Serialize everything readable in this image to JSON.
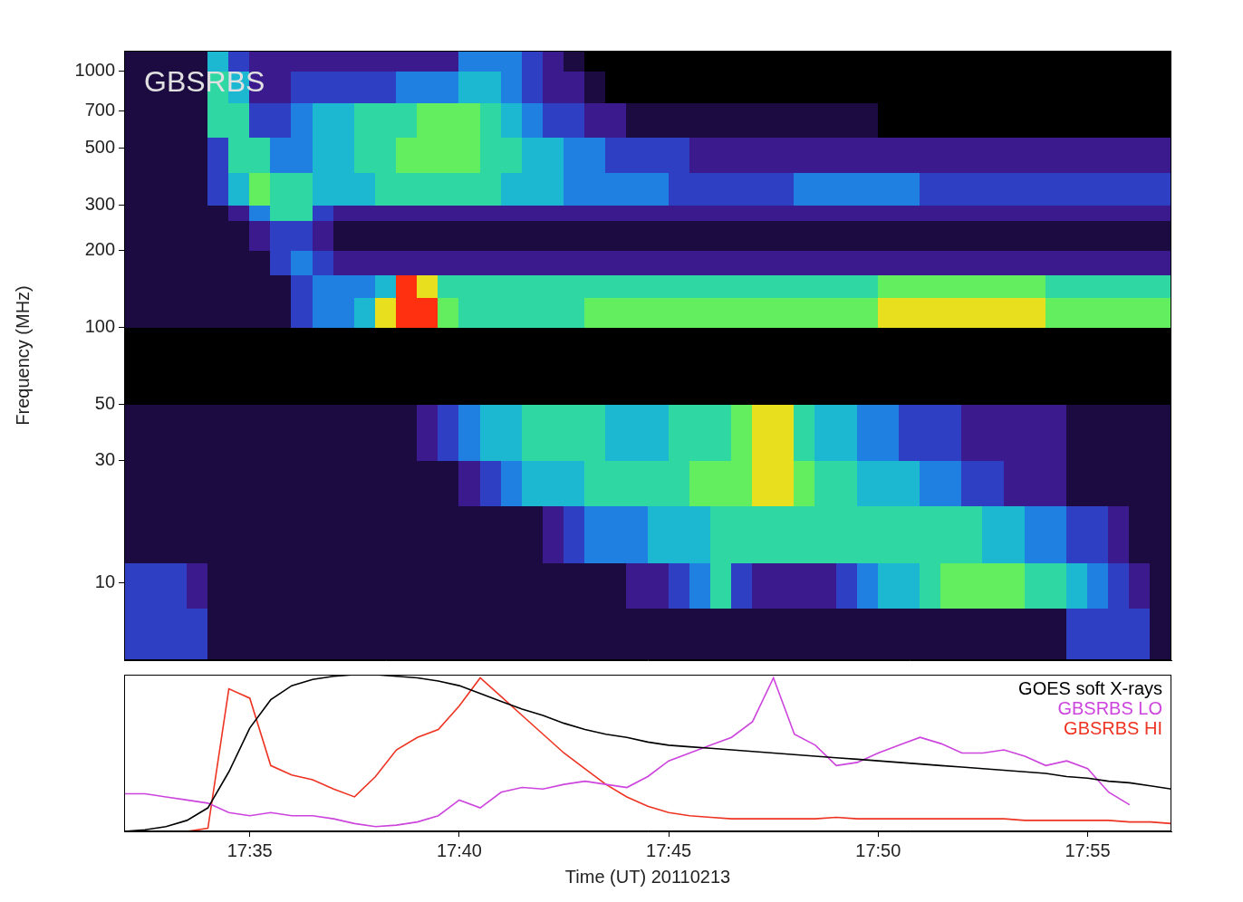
{
  "chart_data": [
    {
      "type": "heatmap",
      "title": "GBSRBS",
      "y_label": "Frequency (MHz)",
      "log": "y",
      "tick_labels": "y",
      "xlim": [
        32,
        57
      ],
      "ylim": [
        5,
        1200
      ],
      "yticks": [
        10,
        30,
        50,
        100,
        200,
        300,
        500,
        700,
        1000
      ],
      "time_bins": [
        32,
        32.5,
        33,
        33.5,
        34,
        34.5,
        35,
        35.5,
        36,
        36.5,
        37,
        37.5,
        38,
        38.5,
        39,
        39.5,
        40,
        40.5,
        41,
        41.5,
        42,
        42.5,
        43,
        43.5,
        44,
        44.5,
        45,
        45.5,
        46,
        46.5,
        47,
        47.5,
        48,
        48.5,
        49,
        49.5,
        50,
        50.5,
        51,
        51.5,
        52,
        52.5,
        53,
        53.5,
        54,
        54.5,
        55,
        55.5,
        56,
        56.5,
        57
      ],
      "frequency_bins": [
        5,
        8,
        12,
        20,
        30,
        50,
        100,
        130,
        160,
        200,
        260,
        300,
        400,
        550,
        750,
        1000,
        1200
      ],
      "cells": [
        [
          3,
          3,
          3,
          3,
          1,
          1,
          1,
          1,
          1,
          1,
          1,
          1,
          1,
          1,
          1,
          1,
          1,
          1,
          1,
          1,
          1,
          1,
          1,
          1,
          1,
          1,
          1,
          1,
          1,
          1,
          1,
          1,
          1,
          1,
          1,
          1,
          1,
          1,
          1,
          1,
          1,
          1,
          1,
          1,
          1,
          3,
          3,
          3,
          3,
          1
        ],
        [
          3,
          3,
          3,
          2,
          1,
          1,
          1,
          1,
          1,
          1,
          1,
          1,
          1,
          1,
          1,
          1,
          1,
          1,
          1,
          1,
          1,
          1,
          1,
          1,
          2,
          2,
          3,
          4,
          6,
          3,
          2,
          2,
          2,
          2,
          3,
          4,
          5,
          5,
          6,
          7,
          7,
          7,
          7,
          6,
          6,
          5,
          4,
          3,
          2,
          1
        ],
        [
          1,
          1,
          1,
          1,
          1,
          1,
          1,
          1,
          1,
          1,
          1,
          1,
          1,
          1,
          1,
          1,
          1,
          1,
          1,
          1,
          2,
          3,
          4,
          4,
          4,
          5,
          5,
          5,
          6,
          6,
          6,
          6,
          6,
          6,
          6,
          6,
          6,
          6,
          6,
          6,
          6,
          5,
          5,
          4,
          4,
          3,
          3,
          2,
          1,
          1
        ],
        [
          1,
          1,
          1,
          1,
          1,
          1,
          1,
          1,
          1,
          1,
          1,
          1,
          1,
          1,
          1,
          1,
          2,
          3,
          4,
          5,
          5,
          5,
          6,
          6,
          6,
          6,
          6,
          7,
          7,
          7,
          8,
          8,
          7,
          6,
          6,
          5,
          5,
          5,
          4,
          4,
          3,
          3,
          2,
          2,
          2,
          1,
          1,
          1,
          1,
          1
        ],
        [
          1,
          1,
          1,
          1,
          1,
          1,
          1,
          1,
          1,
          1,
          1,
          1,
          1,
          1,
          2,
          3,
          4,
          5,
          5,
          6,
          6,
          6,
          6,
          5,
          5,
          5,
          6,
          6,
          6,
          7,
          8,
          8,
          6,
          5,
          5,
          4,
          4,
          3,
          3,
          3,
          2,
          2,
          2,
          2,
          2,
          1,
          1,
          1,
          1,
          1
        ],
        [
          0,
          0,
          0,
          0,
          0,
          0,
          0,
          0,
          0,
          0,
          0,
          0,
          0,
          0,
          0,
          0,
          0,
          0,
          0,
          0,
          0,
          0,
          0,
          0,
          0,
          0,
          0,
          0,
          0,
          0,
          0,
          0,
          0,
          0,
          0,
          0,
          0,
          0,
          0,
          0,
          0,
          0,
          0,
          0,
          0,
          0,
          0,
          0,
          0,
          0
        ],
        [
          1,
          1,
          1,
          1,
          1,
          1,
          1,
          1,
          3,
          4,
          4,
          5,
          8,
          9,
          9,
          7,
          6,
          6,
          6,
          6,
          6,
          6,
          7,
          7,
          7,
          7,
          7,
          7,
          7,
          7,
          7,
          7,
          7,
          7,
          7,
          7,
          8,
          8,
          8,
          8,
          8,
          8,
          8,
          8,
          7,
          7,
          7,
          7,
          7,
          7
        ],
        [
          1,
          1,
          1,
          1,
          1,
          1,
          1,
          1,
          3,
          4,
          4,
          4,
          5,
          9,
          8,
          6,
          6,
          6,
          6,
          6,
          6,
          6,
          6,
          6,
          6,
          6,
          6,
          6,
          6,
          6,
          6,
          6,
          6,
          6,
          6,
          6,
          7,
          7,
          7,
          7,
          7,
          7,
          7,
          7,
          6,
          6,
          6,
          6,
          6,
          6
        ],
        [
          1,
          1,
          1,
          1,
          1,
          1,
          1,
          3,
          4,
          3,
          2,
          2,
          2,
          2,
          2,
          2,
          2,
          2,
          2,
          2,
          2,
          2,
          2,
          2,
          2,
          2,
          2,
          2,
          2,
          2,
          2,
          2,
          2,
          2,
          2,
          2,
          2,
          2,
          2,
          2,
          2,
          2,
          2,
          2,
          2,
          2,
          2,
          2,
          2,
          2
        ],
        [
          1,
          1,
          1,
          1,
          1,
          1,
          2,
          3,
          3,
          2,
          1,
          1,
          1,
          1,
          1,
          1,
          1,
          1,
          1,
          1,
          1,
          1,
          1,
          1,
          1,
          1,
          1,
          1,
          1,
          1,
          1,
          1,
          1,
          1,
          1,
          1,
          1,
          1,
          1,
          1,
          1,
          1,
          1,
          1,
          1,
          1,
          1,
          1,
          1,
          1
        ],
        [
          1,
          1,
          1,
          1,
          1,
          2,
          4,
          6,
          6,
          3,
          2,
          2,
          2,
          2,
          2,
          2,
          2,
          2,
          2,
          2,
          2,
          2,
          2,
          2,
          2,
          2,
          2,
          2,
          2,
          2,
          2,
          2,
          2,
          2,
          2,
          2,
          2,
          2,
          2,
          2,
          2,
          2,
          2,
          2,
          2,
          2,
          2,
          2,
          2,
          2
        ],
        [
          1,
          1,
          1,
          1,
          3,
          5,
          7,
          6,
          6,
          5,
          5,
          5,
          6,
          6,
          6,
          6,
          6,
          6,
          5,
          5,
          5,
          4,
          4,
          4,
          4,
          4,
          3,
          3,
          3,
          3,
          3,
          3,
          4,
          4,
          4,
          4,
          4,
          4,
          3,
          3,
          3,
          3,
          3,
          3,
          3,
          3,
          3,
          3,
          3,
          3
        ],
        [
          1,
          1,
          1,
          1,
          3,
          6,
          6,
          4,
          4,
          5,
          5,
          6,
          6,
          7,
          7,
          7,
          7,
          6,
          6,
          5,
          5,
          4,
          4,
          3,
          3,
          3,
          3,
          2,
          2,
          2,
          2,
          2,
          2,
          2,
          2,
          2,
          2,
          2,
          2,
          2,
          2,
          2,
          2,
          2,
          2,
          2,
          2,
          2,
          2,
          2
        ],
        [
          1,
          1,
          1,
          1,
          6,
          6,
          3,
          3,
          4,
          5,
          5,
          6,
          6,
          6,
          7,
          7,
          7,
          6,
          5,
          4,
          3,
          3,
          2,
          2,
          1,
          1,
          1,
          1,
          1,
          1,
          1,
          1,
          1,
          1,
          1,
          1,
          0,
          0,
          0,
          0,
          0,
          0,
          0,
          0,
          0,
          0,
          0,
          0,
          0,
          0
        ],
        [
          1,
          1,
          1,
          1,
          6,
          5,
          2,
          2,
          3,
          3,
          3,
          3,
          3,
          4,
          4,
          4,
          5,
          5,
          4,
          3,
          2,
          2,
          1,
          0,
          0,
          0,
          0,
          0,
          0,
          0,
          0,
          0,
          0,
          0,
          0,
          0,
          0,
          0,
          0,
          0,
          0,
          0,
          0,
          0,
          0,
          0,
          0,
          0,
          0,
          0
        ],
        [
          1,
          1,
          1,
          1,
          5,
          3,
          2,
          2,
          2,
          2,
          2,
          2,
          2,
          2,
          2,
          2,
          4,
          4,
          4,
          3,
          2,
          1,
          0,
          0,
          0,
          0,
          0,
          0,
          0,
          0,
          0,
          0,
          0,
          0,
          0,
          0,
          0,
          0,
          0,
          0,
          0,
          0,
          0,
          0,
          0,
          0,
          0,
          0,
          0,
          0
        ]
      ]
    },
    {
      "type": "line",
      "x_label": "Time (UT) 20110213",
      "tick_labels": "x",
      "legend": "upper right",
      "xlim": [
        32,
        57
      ],
      "xticks": [
        {
          "value": 35,
          "label": "17:35"
        },
        {
          "value": 40,
          "label": "17:40"
        },
        {
          "value": 45,
          "label": "17:45"
        },
        {
          "value": 50,
          "label": "17:50"
        },
        {
          "value": 55,
          "label": "17:55"
        }
      ],
      "ylim": [
        0,
        1
      ],
      "x": [
        32,
        32.5,
        33,
        33.5,
        34,
        34.5,
        35,
        35.5,
        36,
        36.5,
        37,
        37.5,
        38,
        38.5,
        39,
        39.5,
        40,
        40.5,
        41,
        41.5,
        42,
        42.5,
        43,
        43.5,
        44,
        44.5,
        45,
        45.5,
        46,
        46.5,
        47,
        47.5,
        48,
        48.5,
        49,
        49.5,
        50,
        50.5,
        51,
        51.5,
        52,
        52.5,
        53,
        53.5,
        54,
        54.5,
        55,
        55.5,
        56,
        56.5,
        57
      ],
      "series": [
        {
          "name": "GOES soft X-rays",
          "color": "#000000",
          "values": [
            0,
            0.01,
            0.03,
            0.07,
            0.15,
            0.38,
            0.66,
            0.84,
            0.93,
            0.97,
            0.99,
            1,
            1,
            0.99,
            0.98,
            0.96,
            0.93,
            0.88,
            0.83,
            0.78,
            0.74,
            0.69,
            0.65,
            0.62,
            0.6,
            0.57,
            0.55,
            0.54,
            0.53,
            0.52,
            0.51,
            0.5,
            0.49,
            0.48,
            0.47,
            0.46,
            0.45,
            0.44,
            0.43,
            0.42,
            0.41,
            0.4,
            0.39,
            0.38,
            0.37,
            0.35,
            0.34,
            0.32,
            0.31,
            0.29,
            0.27
          ]
        },
        {
          "name": "GBSRBS LO",
          "color": "#cc44dd",
          "values": [
            0.24,
            0.24,
            0.22,
            0.2,
            0.18,
            0.12,
            0.1,
            0.12,
            0.1,
            0.1,
            0.08,
            0.05,
            0.03,
            0.04,
            0.06,
            0.1,
            0.2,
            0.15,
            0.25,
            0.28,
            0.27,
            0.3,
            0.32,
            0.3,
            0.28,
            0.35,
            0.45,
            0.5,
            0.55,
            0.6,
            0.7,
            0.98,
            0.62,
            0.55,
            0.42,
            0.44,
            0.5,
            0.55,
            0.6,
            0.56,
            0.5,
            0.5,
            0.52,
            0.48,
            0.42,
            0.45,
            0.4,
            0.25,
            0.17,
            null,
            null
          ]
        },
        {
          "name": "GBSRBS HI",
          "color": "#ee3322",
          "values": [
            0,
            0,
            0,
            0,
            0.02,
            0.91,
            0.85,
            0.42,
            0.36,
            0.33,
            0.27,
            0.22,
            0.35,
            0.52,
            0.6,
            0.65,
            0.8,
            0.98,
            0.86,
            0.74,
            0.62,
            0.5,
            0.4,
            0.3,
            0.22,
            0.16,
            0.12,
            0.1,
            0.09,
            0.08,
            0.08,
            0.08,
            0.08,
            0.08,
            0.09,
            0.08,
            0.08,
            0.08,
            0.08,
            0.08,
            0.08,
            0.08,
            0.08,
            0.07,
            0.07,
            0.07,
            0.07,
            0.07,
            0.06,
            0.06,
            0.05
          ]
        }
      ]
    }
  ]
}
